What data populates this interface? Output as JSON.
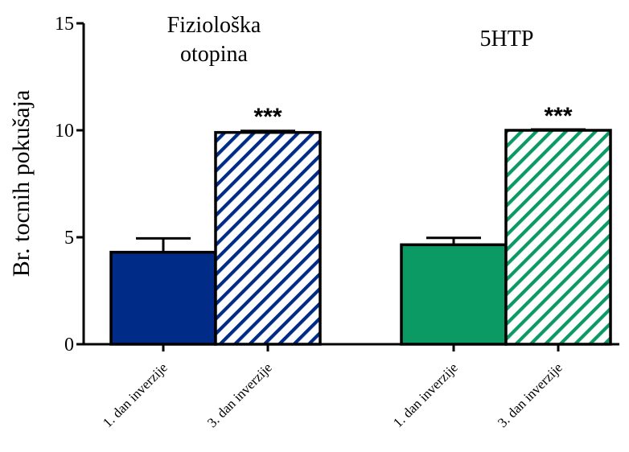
{
  "chart_data": {
    "type": "bar",
    "ylabel": "Br. tocnih pokušaja",
    "ylim": [
      0,
      15
    ],
    "yticks": [
      0,
      5,
      10,
      15
    ],
    "groups": [
      {
        "label_lines": [
          "Fiziološka",
          "otopina"
        ],
        "color": "#002b87",
        "bars": [
          {
            "category": "1. dan inverzije",
            "value": 4.3,
            "error": 0.65,
            "pattern": "solid",
            "significance": ""
          },
          {
            "category": "3. dan inverzije",
            "value": 9.9,
            "error": 0.07,
            "pattern": "hatch",
            "significance": "***"
          }
        ]
      },
      {
        "label_lines": [
          "5HTP"
        ],
        "color": "#0b9a64",
        "bars": [
          {
            "category": "1. dan inverzije",
            "value": 4.65,
            "error": 0.32,
            "pattern": "solid",
            "significance": ""
          },
          {
            "category": "3. dan inverzije",
            "value": 10.0,
            "error": 0.0,
            "pattern": "hatch",
            "significance": "***"
          }
        ]
      }
    ]
  }
}
